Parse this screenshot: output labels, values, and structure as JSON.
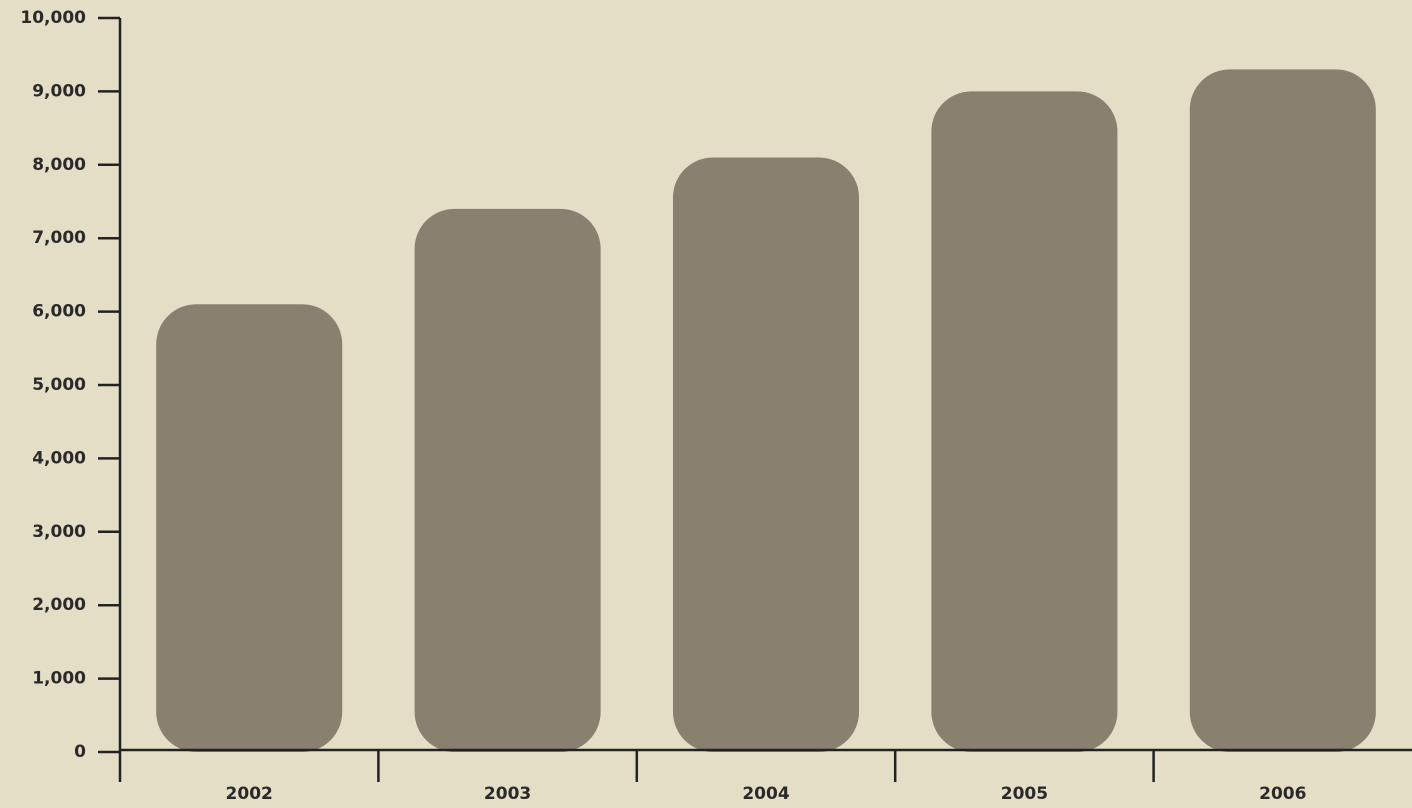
{
  "chart_data": {
    "type": "bar",
    "categories": [
      "2002",
      "2003",
      "2004",
      "2005",
      "2006"
    ],
    "values": [
      6100,
      7400,
      8100,
      9000,
      9300
    ],
    "color": "#8a8070",
    "ylim": [
      0,
      10000
    ],
    "yticks": [
      0,
      {
        "value": 1000,
        "label": "1,000"
      },
      {
        "value": 2000,
        "label": "2,000"
      },
      {
        "value": 3000,
        "label": "3,000"
      },
      {
        "value": 4000,
        "label": "4,000"
      },
      {
        "value": 5000,
        "label": "5,000"
      },
      {
        "value": 6000,
        "label": "6,000"
      },
      {
        "value": 7000,
        "label": "7,000"
      },
      {
        "value": 8000,
        "label": "8,000"
      },
      {
        "value": 9000,
        "label": "9,000"
      },
      {
        "value": 10000,
        "label": "10,000"
      }
    ],
    "grid": true
  }
}
